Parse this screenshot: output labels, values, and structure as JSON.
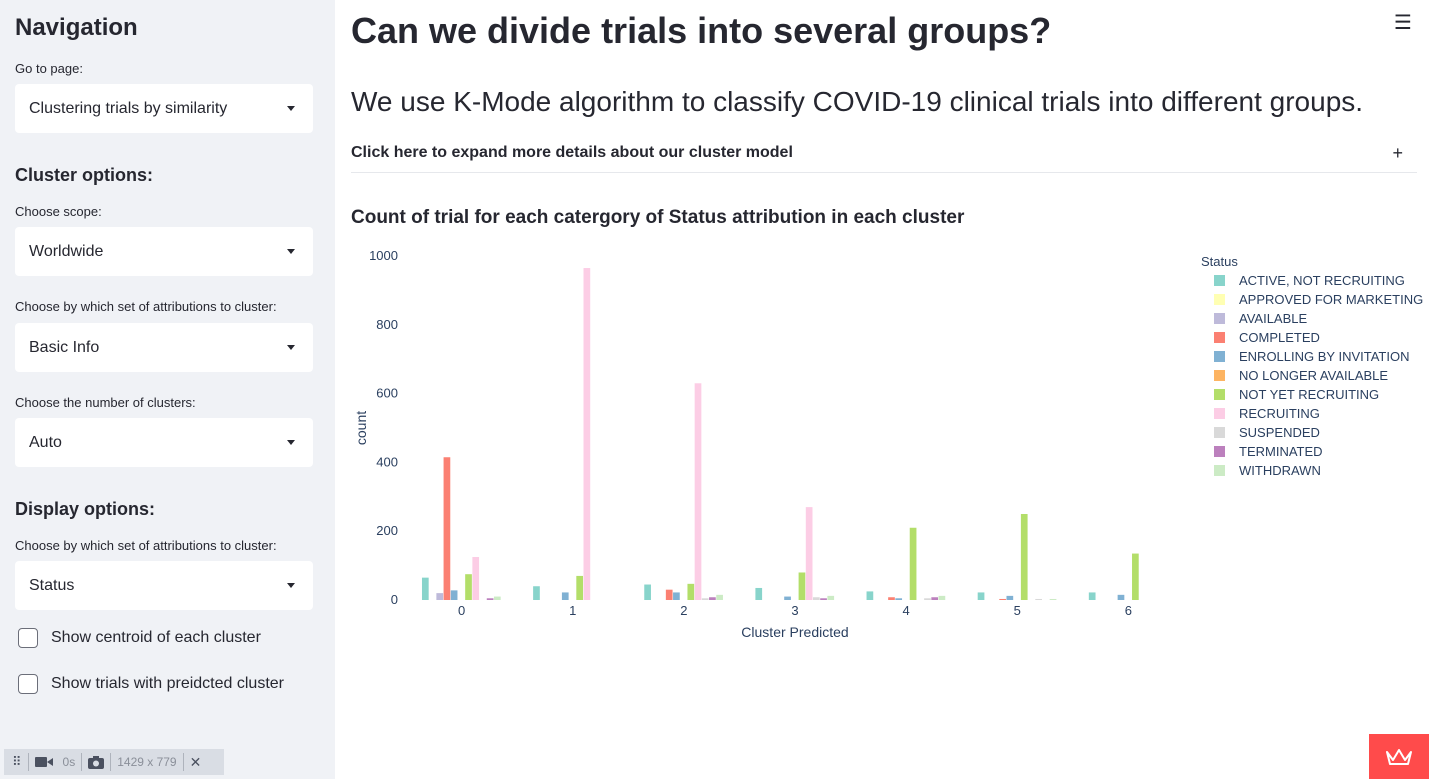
{
  "sidebar": {
    "title": "Navigation",
    "goto_label": "Go to page:",
    "goto_value": "Clustering trials by similarity",
    "cluster_header": "Cluster options:",
    "scope_label": "Choose scope:",
    "scope_value": "Worldwide",
    "attr_label": "Choose by which set of attributions to cluster:",
    "attr_value": "Basic Info",
    "num_label": "Choose the number of clusters:",
    "num_value": "Auto",
    "display_header": "Display options:",
    "display_label": "Choose by which set of attributions to cluster:",
    "display_value": "Status",
    "check_centroid": "Show centroid of each cluster",
    "check_trials": "Show trials with preidcted cluster"
  },
  "toolbar": {
    "time": "0s",
    "size": "1429 x 779"
  },
  "main": {
    "title": "Can we divide trials into several groups?",
    "subtitle": "We use K-Mode algorithm to classify COVID-19 clinical trials into different groups.",
    "expander": "Click here to expand more details about our cluster model",
    "chart_title": "Count of trial for each catergory of Status attribution in each cluster"
  },
  "chart_data": {
    "type": "bar",
    "title": "Count of trial for each catergory of Status attribution in each cluster",
    "xlabel": "Cluster Predicted",
    "ylabel": "count",
    "categories": [
      "0",
      "1",
      "2",
      "3",
      "4",
      "5",
      "6"
    ],
    "ylim": [
      0,
      1000
    ],
    "yticks": [
      0,
      200,
      400,
      600,
      800,
      1000
    ],
    "legend_title": "Status",
    "legend_position": "right",
    "series": [
      {
        "name": "ACTIVE, NOT RECRUITING",
        "color": "#88d4cb",
        "values": [
          65,
          40,
          45,
          35,
          25,
          22,
          22
        ]
      },
      {
        "name": "APPROVED FOR MARKETING",
        "color": "#ffffb3",
        "values": [
          0,
          0,
          0,
          0,
          0,
          0,
          0
        ]
      },
      {
        "name": "AVAILABLE",
        "color": "#bebada",
        "values": [
          20,
          0,
          0,
          0,
          0,
          0,
          0
        ]
      },
      {
        "name": "COMPLETED",
        "color": "#fb8072",
        "values": [
          415,
          0,
          30,
          0,
          8,
          3,
          0
        ]
      },
      {
        "name": "ENROLLING BY INVITATION",
        "color": "#80b1d3",
        "values": [
          28,
          22,
          22,
          10,
          5,
          12,
          15
        ]
      },
      {
        "name": "NO LONGER AVAILABLE",
        "color": "#fdb462",
        "values": [
          0,
          0,
          0,
          0,
          0,
          0,
          0
        ]
      },
      {
        "name": "NOT YET RECRUITING",
        "color": "#b3de69",
        "values": [
          75,
          70,
          47,
          80,
          210,
          250,
          135
        ]
      },
      {
        "name": "RECRUITING",
        "color": "#fccde5",
        "values": [
          125,
          965,
          630,
          270,
          0,
          0,
          0
        ]
      },
      {
        "name": "SUSPENDED",
        "color": "#d9d9d9",
        "values": [
          0,
          0,
          5,
          8,
          5,
          3,
          0
        ]
      },
      {
        "name": "TERMINATED",
        "color": "#bc80bd",
        "values": [
          5,
          0,
          8,
          5,
          8,
          0,
          0
        ]
      },
      {
        "name": "WITHDRAWN",
        "color": "#ccebc5",
        "values": [
          10,
          0,
          15,
          12,
          12,
          3,
          0
        ]
      }
    ]
  }
}
